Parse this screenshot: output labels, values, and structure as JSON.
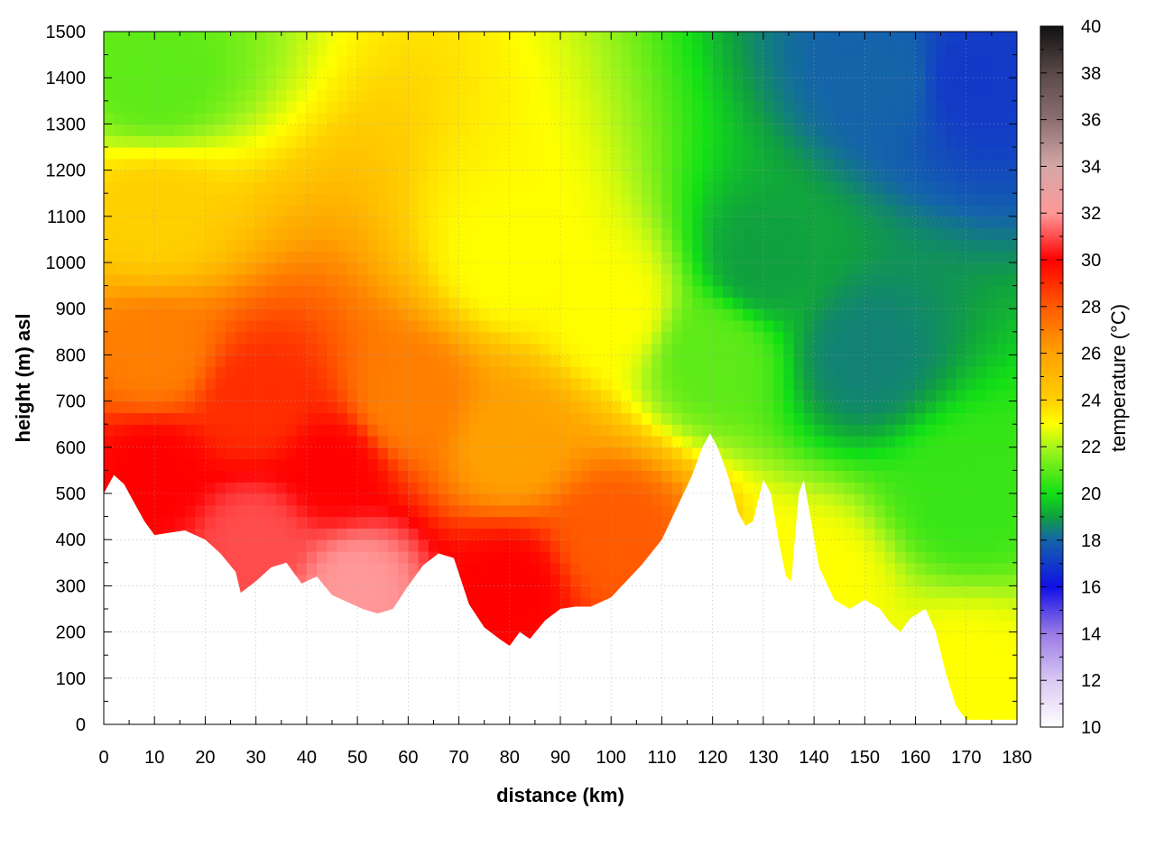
{
  "chart_data": {
    "type": "heatmap",
    "subtype": "vertical cross-section temperature profile above terrain",
    "xlabel": "distance (km)",
    "ylabel": "height (m) asl",
    "colorbar_label": "temperature (°C)",
    "xlim": [
      0,
      180
    ],
    "ylim": [
      0,
      1500
    ],
    "clim": [
      10,
      40
    ],
    "x_ticks": [
      "0",
      "10",
      "20",
      "30",
      "40",
      "50",
      "60",
      "70",
      "80",
      "90",
      "100",
      "110",
      "120",
      "130",
      "140",
      "150",
      "160",
      "170",
      "180"
    ],
    "y_ticks": [
      "0",
      "100",
      "200",
      "300",
      "400",
      "500",
      "600",
      "700",
      "800",
      "900",
      "1000",
      "1100",
      "1200",
      "1300",
      "1400",
      "1500"
    ],
    "colorbar_ticks": [
      "10",
      "12",
      "14",
      "16",
      "18",
      "20",
      "22",
      "24",
      "26",
      "28",
      "30",
      "32",
      "34",
      "36",
      "38",
      "40"
    ],
    "grid": true,
    "colormap": [
      {
        "t": 10,
        "color": "#ffffff"
      },
      {
        "t": 12,
        "color": "#d9c8f2"
      },
      {
        "t": 14,
        "color": "#9a7ae6"
      },
      {
        "t": 16,
        "color": "#1010e6"
      },
      {
        "t": 18,
        "color": "#1464aa"
      },
      {
        "t": 19,
        "color": "#10a040"
      },
      {
        "t": 20,
        "color": "#12e015"
      },
      {
        "t": 22,
        "color": "#a8f51b"
      },
      {
        "t": 23,
        "color": "#ffff00"
      },
      {
        "t": 24,
        "color": "#ffcf00"
      },
      {
        "t": 26,
        "color": "#ffa200"
      },
      {
        "t": 28,
        "color": "#ff5a00"
      },
      {
        "t": 30,
        "color": "#ff0000"
      },
      {
        "t": 32,
        "color": "#ff9898"
      },
      {
        "t": 34,
        "color": "#d4a7a7"
      },
      {
        "t": 36,
        "color": "#8c6f6f"
      },
      {
        "t": 38,
        "color": "#5a4848"
      },
      {
        "t": 40,
        "color": "#111111"
      }
    ],
    "terrain_height_m": {
      "x": [
        0,
        2,
        4,
        6,
        8,
        10,
        13,
        16,
        20,
        23,
        26,
        27,
        30,
        33,
        36,
        39,
        42,
        45,
        48,
        51,
        54,
        57,
        60,
        63,
        66,
        69,
        72,
        75,
        78,
        80,
        82,
        84,
        87,
        90,
        93,
        96,
        100,
        103,
        106,
        110,
        113,
        116,
        118,
        119.5,
        121,
        123,
        125,
        126.5,
        128,
        130,
        131.5,
        133,
        134.5,
        135.5,
        137,
        138,
        141,
        144,
        147,
        150,
        153,
        155,
        157,
        159,
        162,
        164,
        166,
        168,
        170,
        180
      ],
      "y": [
        500,
        540,
        520,
        480,
        440,
        410,
        415,
        420,
        400,
        370,
        330,
        285,
        310,
        340,
        350,
        305,
        320,
        280,
        265,
        250,
        240,
        250,
        300,
        345,
        370,
        360,
        260,
        210,
        185,
        170,
        200,
        185,
        225,
        250,
        255,
        255,
        275,
        310,
        345,
        400,
        470,
        540,
        600,
        630,
        600,
        540,
        460,
        430,
        440,
        530,
        500,
        400,
        320,
        310,
        500,
        530,
        340,
        270,
        250,
        270,
        250,
        220,
        200,
        230,
        250,
        200,
        110,
        40,
        10,
        10
      ]
    },
    "field_samples": [
      {
        "distance_km": 10,
        "height_m": 550,
        "temp_c": 30
      },
      {
        "distance_km": 10,
        "height_m": 800,
        "temp_c": 27
      },
      {
        "distance_km": 10,
        "height_m": 1100,
        "temp_c": 24
      },
      {
        "distance_km": 10,
        "height_m": 1400,
        "temp_c": 21
      },
      {
        "distance_km": 30,
        "height_m": 400,
        "temp_c": 31
      },
      {
        "distance_km": 30,
        "height_m": 700,
        "temp_c": 29
      },
      {
        "distance_km": 45,
        "height_m": 550,
        "temp_c": 30
      },
      {
        "distance_km": 50,
        "height_m": 300,
        "temp_c": 32
      },
      {
        "distance_km": 60,
        "height_m": 700,
        "temp_c": 27
      },
      {
        "distance_km": 80,
        "height_m": 300,
        "temp_c": 30
      },
      {
        "distance_km": 80,
        "height_m": 600,
        "temp_c": 26
      },
      {
        "distance_km": 80,
        "height_m": 1000,
        "temp_c": 23
      },
      {
        "distance_km": 100,
        "height_m": 400,
        "temp_c": 28
      },
      {
        "distance_km": 100,
        "height_m": 900,
        "temp_c": 23
      },
      {
        "distance_km": 120,
        "height_m": 800,
        "temp_c": 21
      },
      {
        "distance_km": 130,
        "height_m": 1000,
        "temp_c": 19
      },
      {
        "distance_km": 140,
        "height_m": 300,
        "temp_c": 23
      },
      {
        "distance_km": 150,
        "height_m": 800,
        "temp_c": 18.5
      },
      {
        "distance_km": 155,
        "height_m": 1400,
        "temp_c": 18
      },
      {
        "distance_km": 170,
        "height_m": 100,
        "temp_c": 23
      },
      {
        "distance_km": 170,
        "height_m": 500,
        "temp_c": 20.5
      },
      {
        "distance_km": 170,
        "height_m": 1400,
        "temp_c": 17
      }
    ]
  }
}
